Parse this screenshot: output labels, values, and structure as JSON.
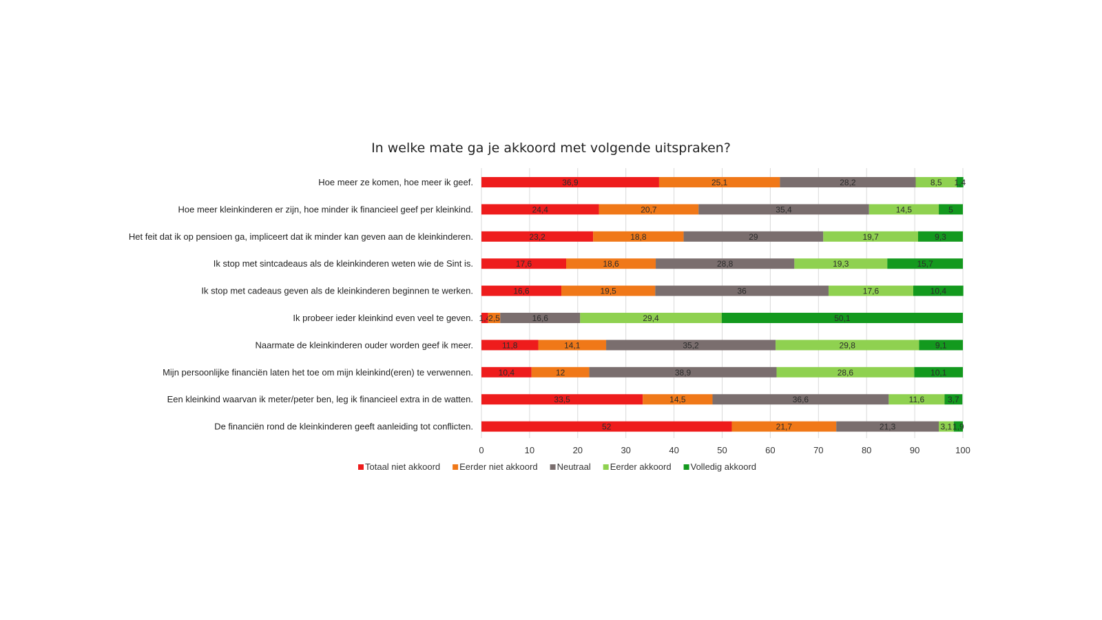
{
  "chart_data": {
    "type": "bar",
    "orientation": "horizontal",
    "stacked": true,
    "title": "In welke mate ga je akkoord met volgende uitspraken?",
    "categories": [
      "Hoe meer ze komen, hoe meer ik geef.",
      "Hoe meer kleinkinderen er zijn, hoe minder ik financieel geef per kleinkind.",
      "Het feit dat ik op pensioen ga, impliceert dat ik minder kan geven aan de kleinkinderen.",
      "Ik stop met sintcadeaus als de kleinkinderen weten wie de Sint is.",
      "Ik stop met cadeaus geven als de kleinkinderen beginnen te werken.",
      "Ik probeer ieder kleinkind even veel te geven.",
      "Naarmate de kleinkinderen ouder worden geef ik meer.",
      "Mijn persoonlijke financiën laten het toe om mijn kleinkind(eren) te verwennen.",
      "Een kleinkind waarvan ik meter/peter ben, leg ik financieel extra in de watten.",
      "De financiën rond de kleinkinderen geeft aanleiding tot conflicten."
    ],
    "series": [
      {
        "name": "Totaal niet akkoord",
        "color": "#ee1c1c",
        "values": [
          36.9,
          24.4,
          23.2,
          17.6,
          16.6,
          1.4,
          11.8,
          10.4,
          33.5,
          52
        ],
        "labels": [
          "36,9",
          "24,4",
          "23,2",
          "17,6",
          "16,6",
          "1,4",
          "11,8",
          "10,4",
          "33,5",
          "52"
        ]
      },
      {
        "name": "Eerder niet akkoord",
        "color": "#f07818",
        "values": [
          25.1,
          20.7,
          18.8,
          18.6,
          19.5,
          2.5,
          14.1,
          12,
          14.5,
          21.7
        ],
        "labels": [
          "25,1",
          "20,7",
          "18,8",
          "18,6",
          "19,5",
          "2,5",
          "14,1",
          "12",
          "14,5",
          "21,7"
        ]
      },
      {
        "name": "Neutraal",
        "color": "#7a6e6e",
        "values": [
          28.2,
          35.4,
          29,
          28.8,
          36,
          16.6,
          35.2,
          38.9,
          36.6,
          21.3
        ],
        "labels": [
          "28,2",
          "35,4",
          "29",
          "28,8",
          "36",
          "16,6",
          "35,2",
          "38,9",
          "36,6",
          "21,3"
        ]
      },
      {
        "name": "Eerder akkoord",
        "color": "#8fd150",
        "values": [
          8.5,
          14.5,
          19.7,
          19.3,
          17.6,
          29.4,
          29.8,
          28.6,
          11.6,
          3.1
        ],
        "labels": [
          "8,5",
          "14,5",
          "19,7",
          "19,3",
          "17,6",
          "29,4",
          "29,8",
          "28,6",
          "11,6",
          "3,1"
        ]
      },
      {
        "name": "Volledig akkoord",
        "color": "#13991e",
        "values": [
          1.4,
          5,
          9.3,
          15.7,
          10.4,
          50.1,
          9.1,
          10.1,
          3.7,
          1.9
        ],
        "labels": [
          "1,4",
          "5",
          "9,3",
          "15,7",
          "10,4",
          "50,1",
          "9,1",
          "10,1",
          "3,7",
          "1,9"
        ]
      }
    ],
    "xlim": [
      0,
      100
    ],
    "xticks": [
      "0",
      "10",
      "20",
      "30",
      "40",
      "50",
      "60",
      "70",
      "80",
      "90",
      "100"
    ],
    "grid": "vertical",
    "legend_position": "bottom",
    "label_color": "#2b2b2b",
    "axis_color": "#d9d9d9"
  }
}
